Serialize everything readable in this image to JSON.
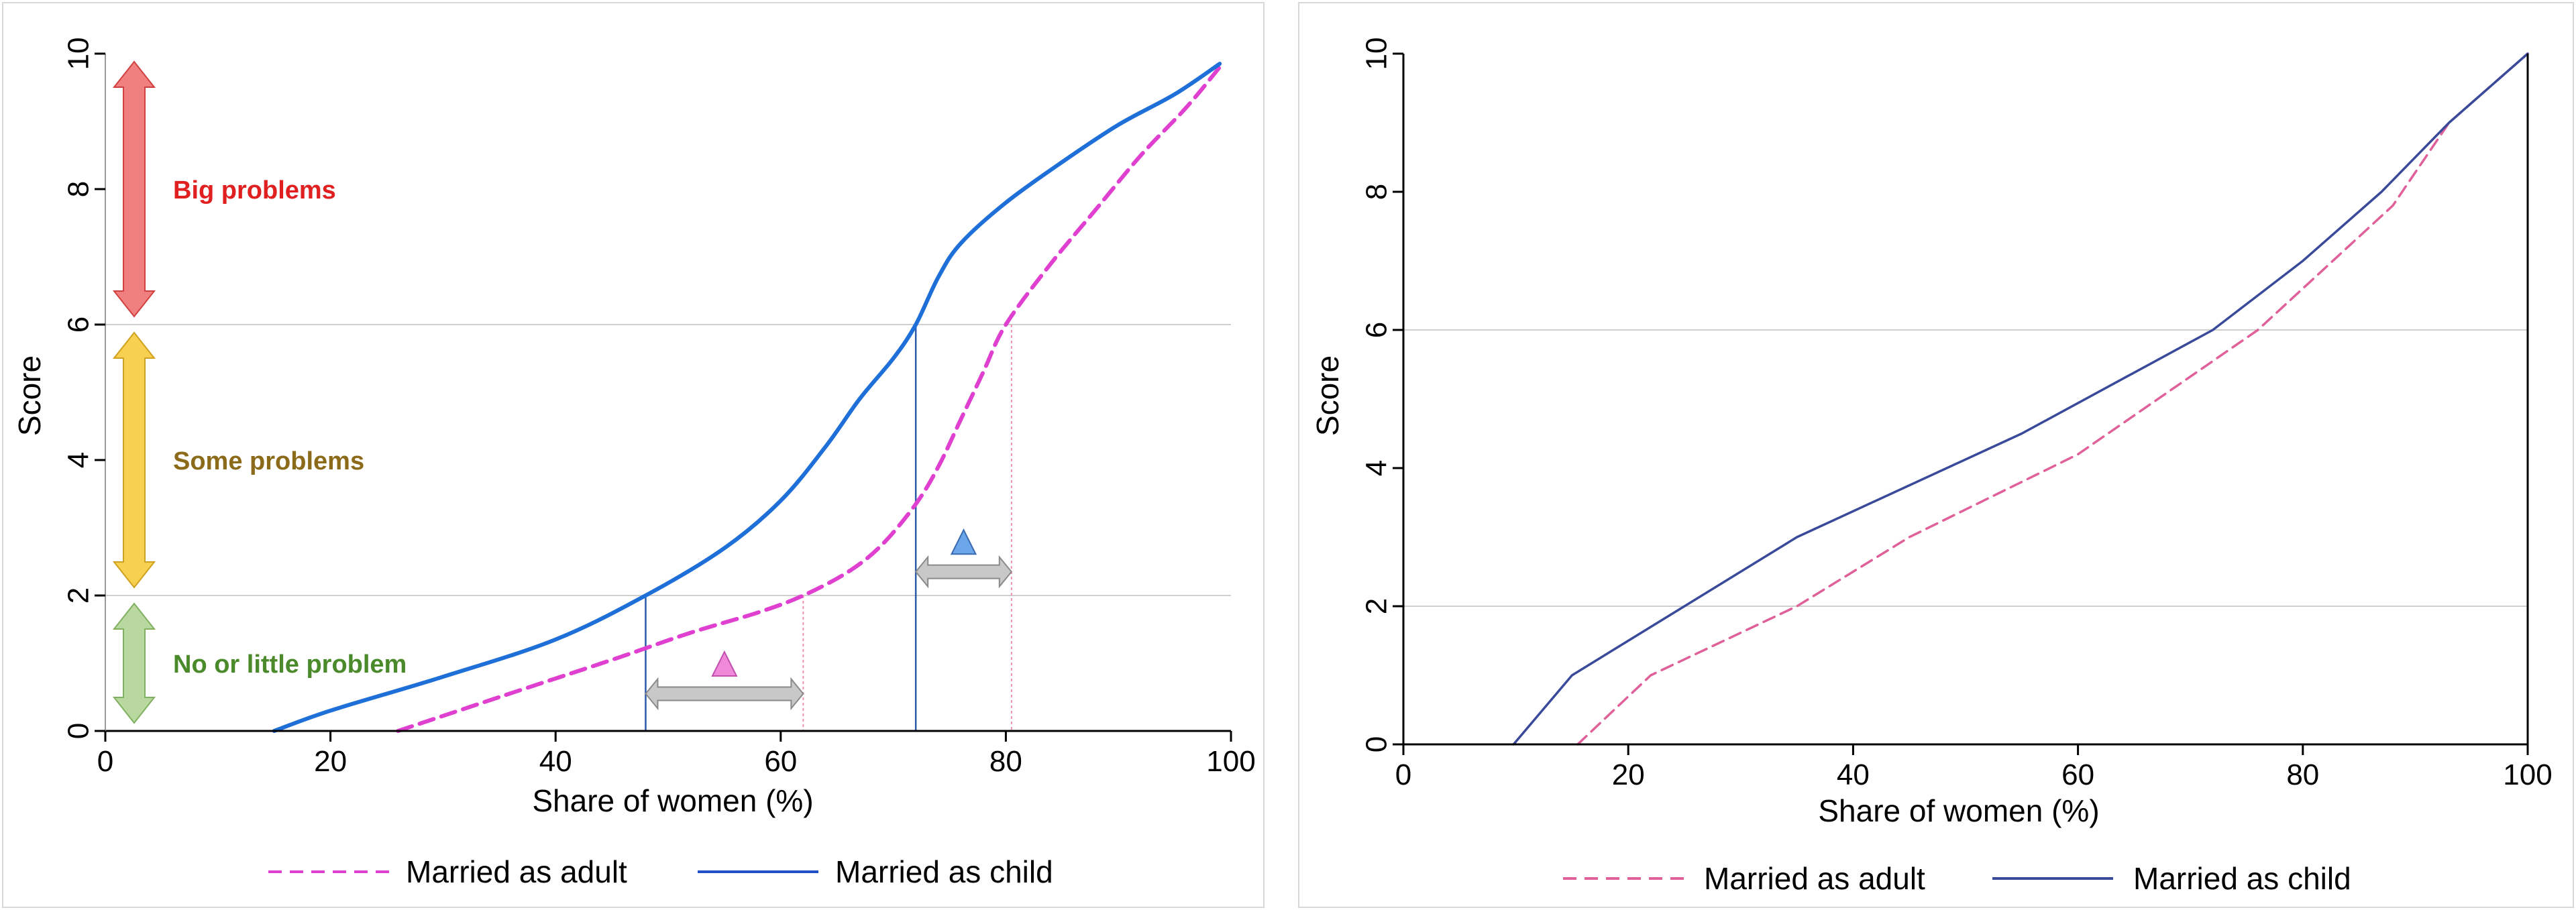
{
  "colors": {
    "adult_left": "#e040d0",
    "child_left": "#1f6fd8",
    "adult_right": "#e0609a",
    "child_right": "#3a4a9a",
    "big_problems": "#e02020",
    "some_problems": "#8b6a1a",
    "little_problem": "#4a8a2a",
    "gray_arrow": "#c8c8c8",
    "pink_marker": "#f08ad8",
    "blue_marker": "#6aa6e8"
  },
  "chart_data": [
    {
      "type": "line",
      "xlabel": "Share of women (%)",
      "ylabel": "Score",
      "xlim": [
        0,
        100
      ],
      "ylim": [
        0,
        10
      ],
      "xticks": [
        "0",
        "20",
        "40",
        "60",
        "80",
        "100"
      ],
      "yticks": [
        "0",
        "2",
        "4",
        "6",
        "8",
        "10"
      ],
      "gridlines_y": [
        2,
        6
      ],
      "bands": [
        {
          "label": "Big problems",
          "from": 6,
          "to": 10
        },
        {
          "label": "Some problems",
          "from": 2,
          "to": 6
        },
        {
          "label": "No or little problem",
          "from": 0,
          "to": 2
        }
      ],
      "guides": [
        {
          "series": "Married as child",
          "x": 48,
          "y": 2
        },
        {
          "series": "Married as adult",
          "x": 62,
          "y": 2
        },
        {
          "series": "Married as child",
          "x": 72,
          "y": 6
        },
        {
          "series": "Married as adult",
          "x": 80.5,
          "y": 6
        }
      ],
      "series": [
        {
          "name": "Married as adult",
          "style": "dashed",
          "x": [
            26,
            35,
            45,
            52,
            58,
            62,
            66,
            69,
            72,
            74,
            76,
            78,
            80,
            84,
            88,
            92,
            96,
            99
          ],
          "y": [
            0,
            0.5,
            1.05,
            1.45,
            1.75,
            2.0,
            2.35,
            2.75,
            3.35,
            3.9,
            4.6,
            5.3,
            6.0,
            6.9,
            7.7,
            8.5,
            9.2,
            9.8
          ]
        },
        {
          "name": "Married as child",
          "style": "solid",
          "x": [
            15,
            20,
            30,
            40,
            48,
            55,
            60,
            64,
            67,
            70,
            72,
            74,
            76,
            80,
            85,
            90,
            95,
            99
          ],
          "y": [
            0,
            0.3,
            0.8,
            1.35,
            2.0,
            2.7,
            3.4,
            4.2,
            4.9,
            5.5,
            6.0,
            6.7,
            7.2,
            7.8,
            8.4,
            8.95,
            9.4,
            9.85
          ]
        }
      ],
      "legend": [
        "Married as adult",
        "Married as child"
      ]
    },
    {
      "type": "line",
      "xlabel": "Share of women (%)",
      "ylabel": "Score",
      "xlim": [
        0,
        100
      ],
      "ylim": [
        0,
        10
      ],
      "xticks": [
        "0",
        "20",
        "40",
        "60",
        "80",
        "100"
      ],
      "yticks": [
        "0",
        "2",
        "4",
        "6",
        "8",
        "10"
      ],
      "gridlines_y": [
        2,
        6
      ],
      "series": [
        {
          "name": "Married as adult",
          "style": "dashed",
          "x": [
            15.5,
            22,
            35,
            45,
            60,
            76,
            88,
            93,
            100
          ],
          "y": [
            0,
            1,
            2,
            3,
            4.2,
            6,
            7.8,
            9,
            10
          ]
        },
        {
          "name": "Married as child",
          "style": "solid",
          "x": [
            9.8,
            15,
            25,
            35,
            55,
            72,
            80,
            87,
            93,
            100
          ],
          "y": [
            0,
            1,
            2,
            3,
            4.5,
            6,
            7,
            8,
            9,
            10
          ]
        }
      ],
      "legend": [
        "Married as adult",
        "Married as child"
      ]
    }
  ]
}
